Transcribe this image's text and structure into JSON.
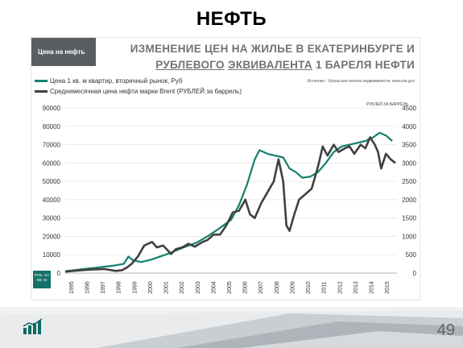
{
  "slide": {
    "title": "НЕФТЬ",
    "page_number": "49"
  },
  "card": {
    "tag": "Цена на нефть",
    "title_line1": "ИЗМЕНЕНИЕ ЦЕН НА ЖИЛЬЕ В ЕКАТЕРИНБУРГЕ И",
    "title_line2_a": "РУБЛЕВОГО",
    "title_line2_b": "ЭКВИВАЛЕНТА",
    "title_line2_c": "1 БАРЕЛЯ НЕФТИ",
    "source": "Источник - Уральская палата недвижимости, www.eia.gov",
    "right_unit": "РУБЛЕЙ ЗА БАРРЕЛЬ",
    "left_unit": "РУБ. ЗА КВ. М"
  },
  "colors": {
    "housing": "#12806f",
    "oil": "#404040",
    "tag_bg": "#5a5e63"
  },
  "chart_data": {
    "type": "line",
    "x_ticks": [
      "1995",
      "1996",
      "1997",
      "1998",
      "1999",
      "2000",
      "2001",
      "2002",
      "2003",
      "2004",
      "2005",
      "2006",
      "2007",
      "2008",
      "2009",
      "2010",
      "2011",
      "2012",
      "2013",
      "2014",
      "2015"
    ],
    "y_left_ticks": [
      0,
      10000,
      20000,
      30000,
      40000,
      50000,
      60000,
      70000,
      80000,
      90000
    ],
    "y_right_ticks": [
      0,
      500,
      1000,
      1500,
      2000,
      2500,
      3000,
      3500,
      4000,
      4500
    ],
    "ylim_left": [
      0,
      90000
    ],
    "ylim_right": [
      0,
      4500
    ],
    "xlim": [
      1995,
      2016
    ],
    "series": [
      {
        "name": "Цена 1 кв. м квартир, вторичный рынок, Руб",
        "axis": "left",
        "points": [
          [
            1995,
            1000
          ],
          [
            1996,
            2000
          ],
          [
            1997,
            3000
          ],
          [
            1998,
            4000
          ],
          [
            1998.7,
            5000
          ],
          [
            1999.0,
            9000
          ],
          [
            1999.3,
            7000
          ],
          [
            1999.8,
            6000
          ],
          [
            2000.5,
            7500
          ],
          [
            2001.5,
            10500
          ],
          [
            2002.5,
            14000
          ],
          [
            2003.3,
            16500
          ],
          [
            2004.0,
            20000
          ],
          [
            2004.7,
            24000
          ],
          [
            2005.5,
            29000
          ],
          [
            2006.0,
            37000
          ],
          [
            2006.5,
            48000
          ],
          [
            2007.0,
            62000
          ],
          [
            2007.3,
            67000
          ],
          [
            2007.8,
            65000
          ],
          [
            2008.3,
            64000
          ],
          [
            2008.8,
            63000
          ],
          [
            2009.2,
            57000
          ],
          [
            2009.6,
            55000
          ],
          [
            2010.0,
            52000
          ],
          [
            2010.5,
            52500
          ],
          [
            2011.0,
            55000
          ],
          [
            2011.5,
            60000
          ],
          [
            2012.0,
            66000
          ],
          [
            2012.5,
            69000
          ],
          [
            2013.0,
            70000
          ],
          [
            2013.5,
            71000
          ],
          [
            2014.0,
            72000
          ],
          [
            2014.5,
            74000
          ],
          [
            2014.9,
            76500
          ],
          [
            2015.3,
            75000
          ],
          [
            2015.7,
            72000
          ]
        ]
      },
      {
        "name": "Среднемесячная цена нефти марки Brent (РУБЛЕЙ за баррель)",
        "axis": "right",
        "points": [
          [
            1995,
            40
          ],
          [
            1996,
            80
          ],
          [
            1996.8,
            100
          ],
          [
            1997.5,
            110
          ],
          [
            1998.2,
            60
          ],
          [
            1998.6,
            80
          ],
          [
            1998.9,
            150
          ],
          [
            1999.2,
            250
          ],
          [
            1999.6,
            450
          ],
          [
            2000.0,
            750
          ],
          [
            2000.5,
            850
          ],
          [
            2000.8,
            700
          ],
          [
            2001.2,
            750
          ],
          [
            2001.7,
            520
          ],
          [
            2002.0,
            650
          ],
          [
            2002.4,
            700
          ],
          [
            2002.8,
            800
          ],
          [
            2003.2,
            720
          ],
          [
            2003.7,
            850
          ],
          [
            2004.0,
            900
          ],
          [
            2004.4,
            1050
          ],
          [
            2004.8,
            1050
          ],
          [
            2005.2,
            1300
          ],
          [
            2005.6,
            1650
          ],
          [
            2006.0,
            1700
          ],
          [
            2006.4,
            2000
          ],
          [
            2006.7,
            1600
          ],
          [
            2007.0,
            1500
          ],
          [
            2007.4,
            1900
          ],
          [
            2007.8,
            2200
          ],
          [
            2008.2,
            2500
          ],
          [
            2008.5,
            3100
          ],
          [
            2008.8,
            2500
          ],
          [
            2009.0,
            1300
          ],
          [
            2009.2,
            1150
          ],
          [
            2009.5,
            1600
          ],
          [
            2009.8,
            2000
          ],
          [
            2010.2,
            2150
          ],
          [
            2010.6,
            2300
          ],
          [
            2011.0,
            2900
          ],
          [
            2011.3,
            3450
          ],
          [
            2011.6,
            3200
          ],
          [
            2012.0,
            3500
          ],
          [
            2012.3,
            3300
          ],
          [
            2012.7,
            3400
          ],
          [
            2013.0,
            3450
          ],
          [
            2013.3,
            3250
          ],
          [
            2013.7,
            3500
          ],
          [
            2014.0,
            3400
          ],
          [
            2014.3,
            3700
          ],
          [
            2014.6,
            3500
          ],
          [
            2014.8,
            3300
          ],
          [
            2015.0,
            2850
          ],
          [
            2015.3,
            3250
          ],
          [
            2015.6,
            3100
          ],
          [
            2015.9,
            3000
          ]
        ]
      }
    ]
  }
}
